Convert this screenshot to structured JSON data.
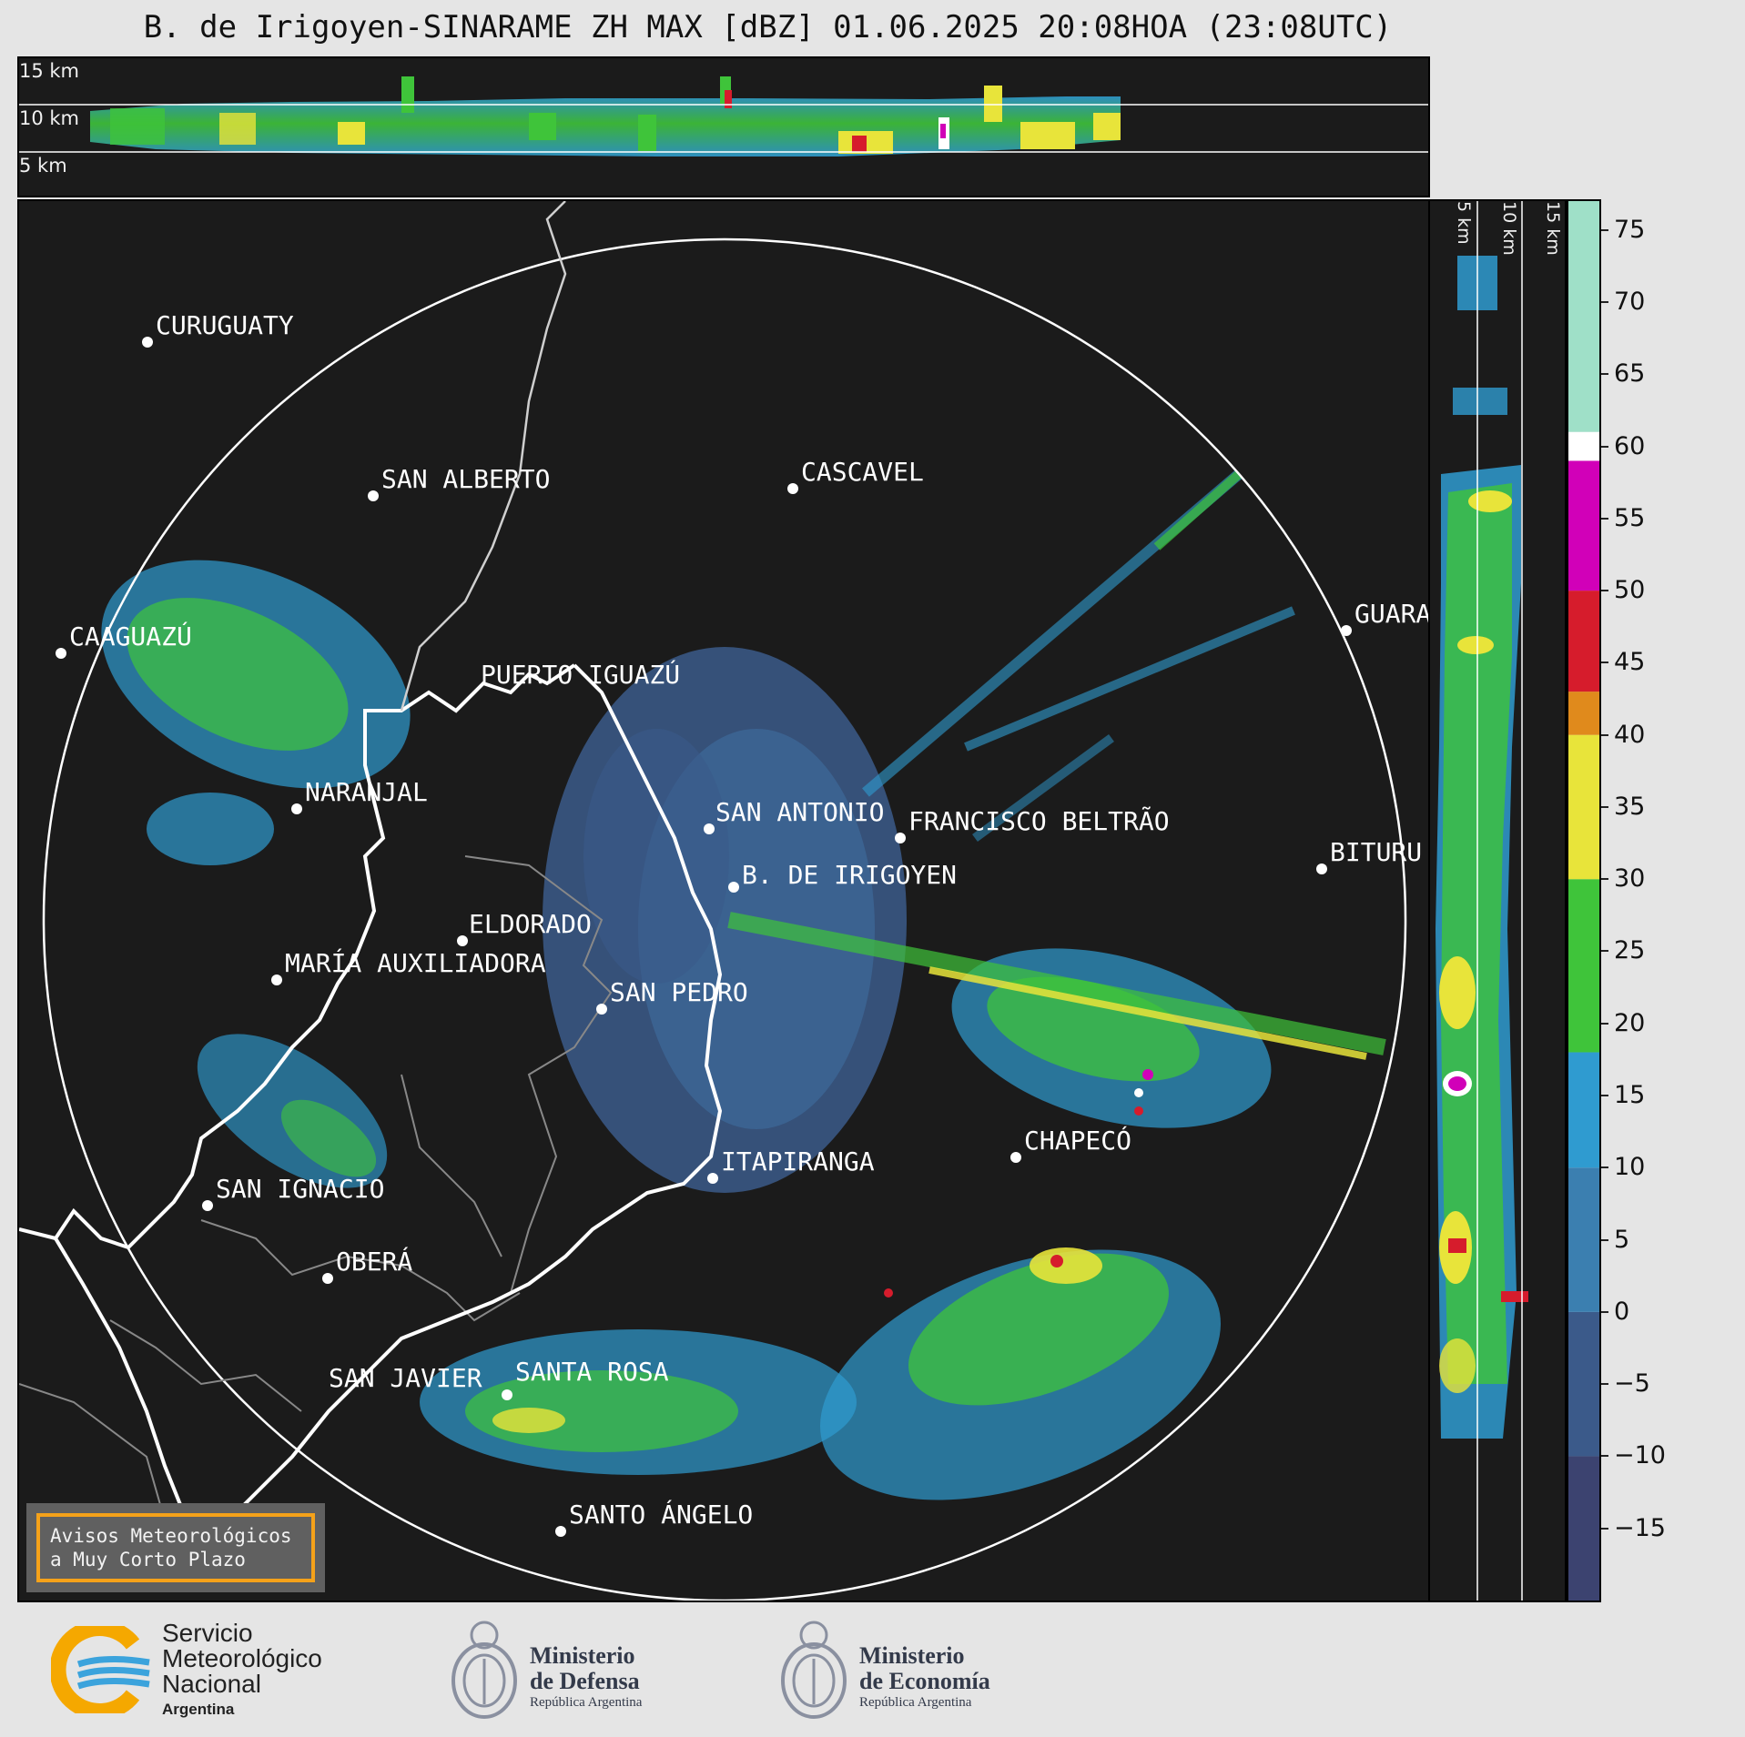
{
  "title": "B. de Irigoyen-SINARAME ZH MAX [dBZ] 01.06.2025 20:08HOA (23:08UTC)",
  "top_panel": {
    "altitude_labels": [
      "15 km",
      "10 km",
      "5 km"
    ]
  },
  "side_panel": {
    "altitude_labels": [
      "5 km",
      "10 km",
      "15 km"
    ]
  },
  "colorbar": {
    "unit": "dBZ",
    "ticks": [
      "75",
      "70",
      "65",
      "60",
      "55",
      "50",
      "45",
      "40",
      "35",
      "30",
      "25",
      "20",
      "15",
      "10",
      "5",
      "0",
      "−5",
      "−10",
      "−15"
    ],
    "range": [
      -20,
      77
    ],
    "bands": [
      {
        "from": -20,
        "to": -10,
        "color": "#3c4370"
      },
      {
        "from": -10,
        "to": 0,
        "color": "#3b5a8a"
      },
      {
        "from": 0,
        "to": 10,
        "color": "#3b7fb0"
      },
      {
        "from": 10,
        "to": 18,
        "color": "#2f9bd0"
      },
      {
        "from": 18,
        "to": 30,
        "color": "#3fc43a"
      },
      {
        "from": 30,
        "to": 40,
        "color": "#e8e43a"
      },
      {
        "from": 40,
        "to": 43,
        "color": "#e08a1c"
      },
      {
        "from": 43,
        "to": 50,
        "color": "#d61c2c"
      },
      {
        "from": 50,
        "to": 59,
        "color": "#d100b8"
      },
      {
        "from": 59,
        "to": 61,
        "color": "#ffffff"
      },
      {
        "from": 61,
        "to": 77,
        "color": "#9fe0c8"
      }
    ]
  },
  "map": {
    "cities": [
      {
        "name": "CURUGUATY"
      },
      {
        "name": "SAN ALBERTO"
      },
      {
        "name": "CASCAVEL"
      },
      {
        "name": "CAAGUAZÚ"
      },
      {
        "name": "GUARA"
      },
      {
        "name": "PUERTO IGUAZÚ"
      },
      {
        "name": "NARANJAL"
      },
      {
        "name": "SAN ANTONIO"
      },
      {
        "name": "FRANCISCO BELTRÃO"
      },
      {
        "name": "B. DE IRIGOYEN"
      },
      {
        "name": "BITURU"
      },
      {
        "name": "ELDORADO"
      },
      {
        "name": "MARÍA AUXILIADORA"
      },
      {
        "name": "SAN PEDRO"
      },
      {
        "name": "CHAPECÓ"
      },
      {
        "name": "ITAPIRANGA"
      },
      {
        "name": "SAN IGNACIO"
      },
      {
        "name": "OBERÁ"
      },
      {
        "name": "SAN JAVIER"
      },
      {
        "name": "SANTA ROSA"
      },
      {
        "name": "SANTO ÁNGELO"
      }
    ]
  },
  "notice": {
    "line1": "Avisos Meteorológicos",
    "line2": "a Muy Corto Plazo"
  },
  "footer": {
    "smn": {
      "line1": "Servicio",
      "line2": "Meteorológico",
      "line3": "Nacional",
      "line4": "Argentina"
    },
    "defensa": {
      "line1": "Ministerio",
      "line2": "de Defensa",
      "line3": "República Argentina"
    },
    "economia": {
      "line1": "Ministerio",
      "line2": "de Economía",
      "line3": "República Argentina"
    }
  }
}
